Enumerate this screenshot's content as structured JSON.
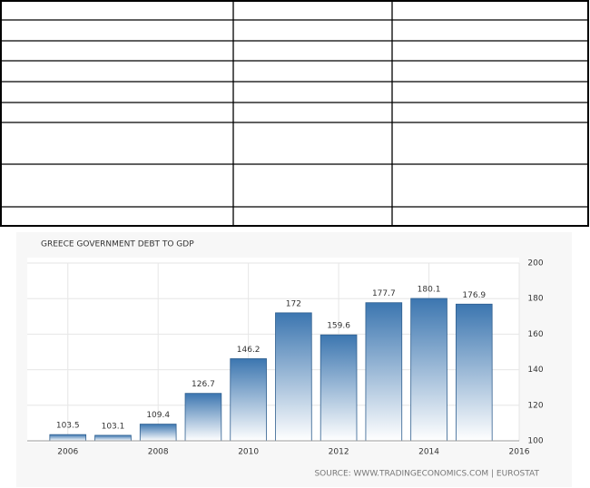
{
  "chart_data": {
    "type": "bar",
    "title": "GREECE GOVERNMENT DEBT TO GDP",
    "x": [
      2006,
      2007,
      2008,
      2009,
      2010,
      2011,
      2012,
      2013,
      2014,
      2015
    ],
    "values": [
      103.5,
      103.1,
      109.4,
      126.7,
      146.2,
      172,
      159.6,
      177.7,
      180.1,
      176.9
    ],
    "color": "#3c76b0",
    "xlim": [
      2005.1,
      2016
    ],
    "xticks": [
      2006,
      2008,
      2010,
      2012,
      2014,
      2016
    ],
    "ylim": [
      100,
      200
    ],
    "yticks": [
      100,
      120,
      140,
      160,
      180,
      200
    ],
    "grid": true,
    "source": "SOURCE: WWW.TRADINGECONOMICS.COM | EUROSTAT"
  }
}
